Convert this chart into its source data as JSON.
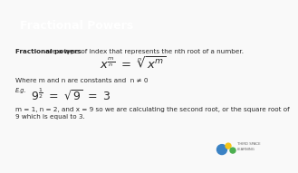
{
  "title": "Fractional Powers",
  "title_bg": "#F47B20",
  "title_color": "#FFFFFF",
  "body_bg": "#F9F9F9",
  "line1_bold": "Fractional powers",
  "line1_rest": " are a type of index that represents the nth root of a number.",
  "where_text": "Where m and n are constants and  n ≠ 0",
  "eg_label": "E.g.",
  "desc1": "m = 1, n = 2, and x = 9 so we are calculating the second root, or the square root of",
  "desc2": "9 which is equal to 3.",
  "font_color": "#2B2B2B",
  "title_fontsize": 9.0,
  "body_fontsize": 5.2,
  "formula_fontsize": 9.5,
  "eg_formula_fontsize": 9.0,
  "logo_blue": "#3B82C4",
  "logo_yellow": "#F5C518",
  "logo_green": "#4CAF50"
}
